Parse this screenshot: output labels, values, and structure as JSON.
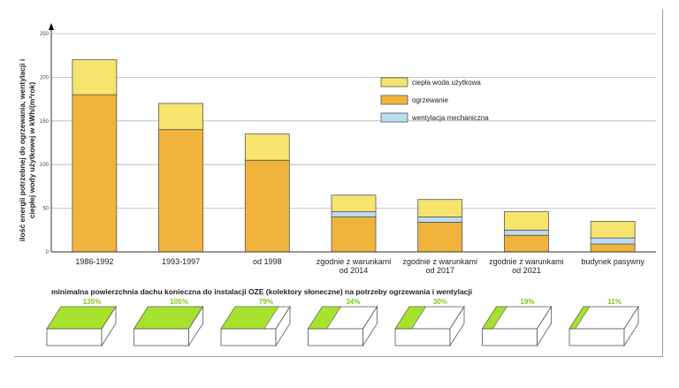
{
  "chart_data": {
    "type": "bar",
    "stacked": true,
    "ylabel": "ilość energii potrzebnej do ogrzewania, wentylacji i ciepłej wody użytkowej w kWh/(m²rok)",
    "ylabel_lines": [
      "ilość energii potrzebnej do ogrzewania, wentylacji i",
      "ciepłej wody użytkowej w kWh/(m²rok)"
    ],
    "ylim": [
      0,
      250
    ],
    "yticks": [
      0,
      50,
      100,
      150,
      200,
      250
    ],
    "grid": true,
    "legend_position": "top-right",
    "categories": [
      "1986-1992",
      "1993-1997",
      "od 1998",
      "zgodnie z warunkami od 2014",
      "zgodnie z warunkami od 2017",
      "zgodnie z warunkami od 2021",
      "budynek pasywny"
    ],
    "category_lines": [
      [
        "1986-1992"
      ],
      [
        "1993-1997"
      ],
      [
        "od 1998"
      ],
      [
        "zgodnie z warunkami",
        "od 2014"
      ],
      [
        "zgodnie z warunkami",
        "od 2017"
      ],
      [
        "zgodnie z warunkami",
        "od 2021"
      ],
      [
        "budynek pasywny"
      ]
    ],
    "series": [
      {
        "name": "ogrzewanie",
        "color": "#f0b43c",
        "values": [
          180,
          140,
          105,
          40,
          34,
          19,
          9
        ]
      },
      {
        "name": "wentylacja mechaniczna",
        "color": "#bcdcf0",
        "values": [
          0,
          0,
          0,
          6,
          6,
          6,
          7
        ]
      },
      {
        "name": "ciepła woda użytkowa",
        "color": "#f6e46e",
        "values": [
          40,
          30,
          30,
          19,
          20,
          21,
          19
        ]
      }
    ],
    "legend_order": [
      "ciepła woda użytkowa",
      "ogrzewanie",
      "wentylacja mechaniczna"
    ]
  },
  "roof_section": {
    "title": "minimalna powierzchnia dachu konieczna do instalacji OZE (kolektory słoneczne) na potrzeby ogrzewania i wentylacji",
    "percentages": [
      "135%",
      "105%",
      "79%",
      "34%",
      "30%",
      "19%",
      "11%"
    ],
    "fractions": [
      1.0,
      1.0,
      0.79,
      0.34,
      0.3,
      0.19,
      0.11
    ],
    "roof_color": "#a6e22e"
  }
}
